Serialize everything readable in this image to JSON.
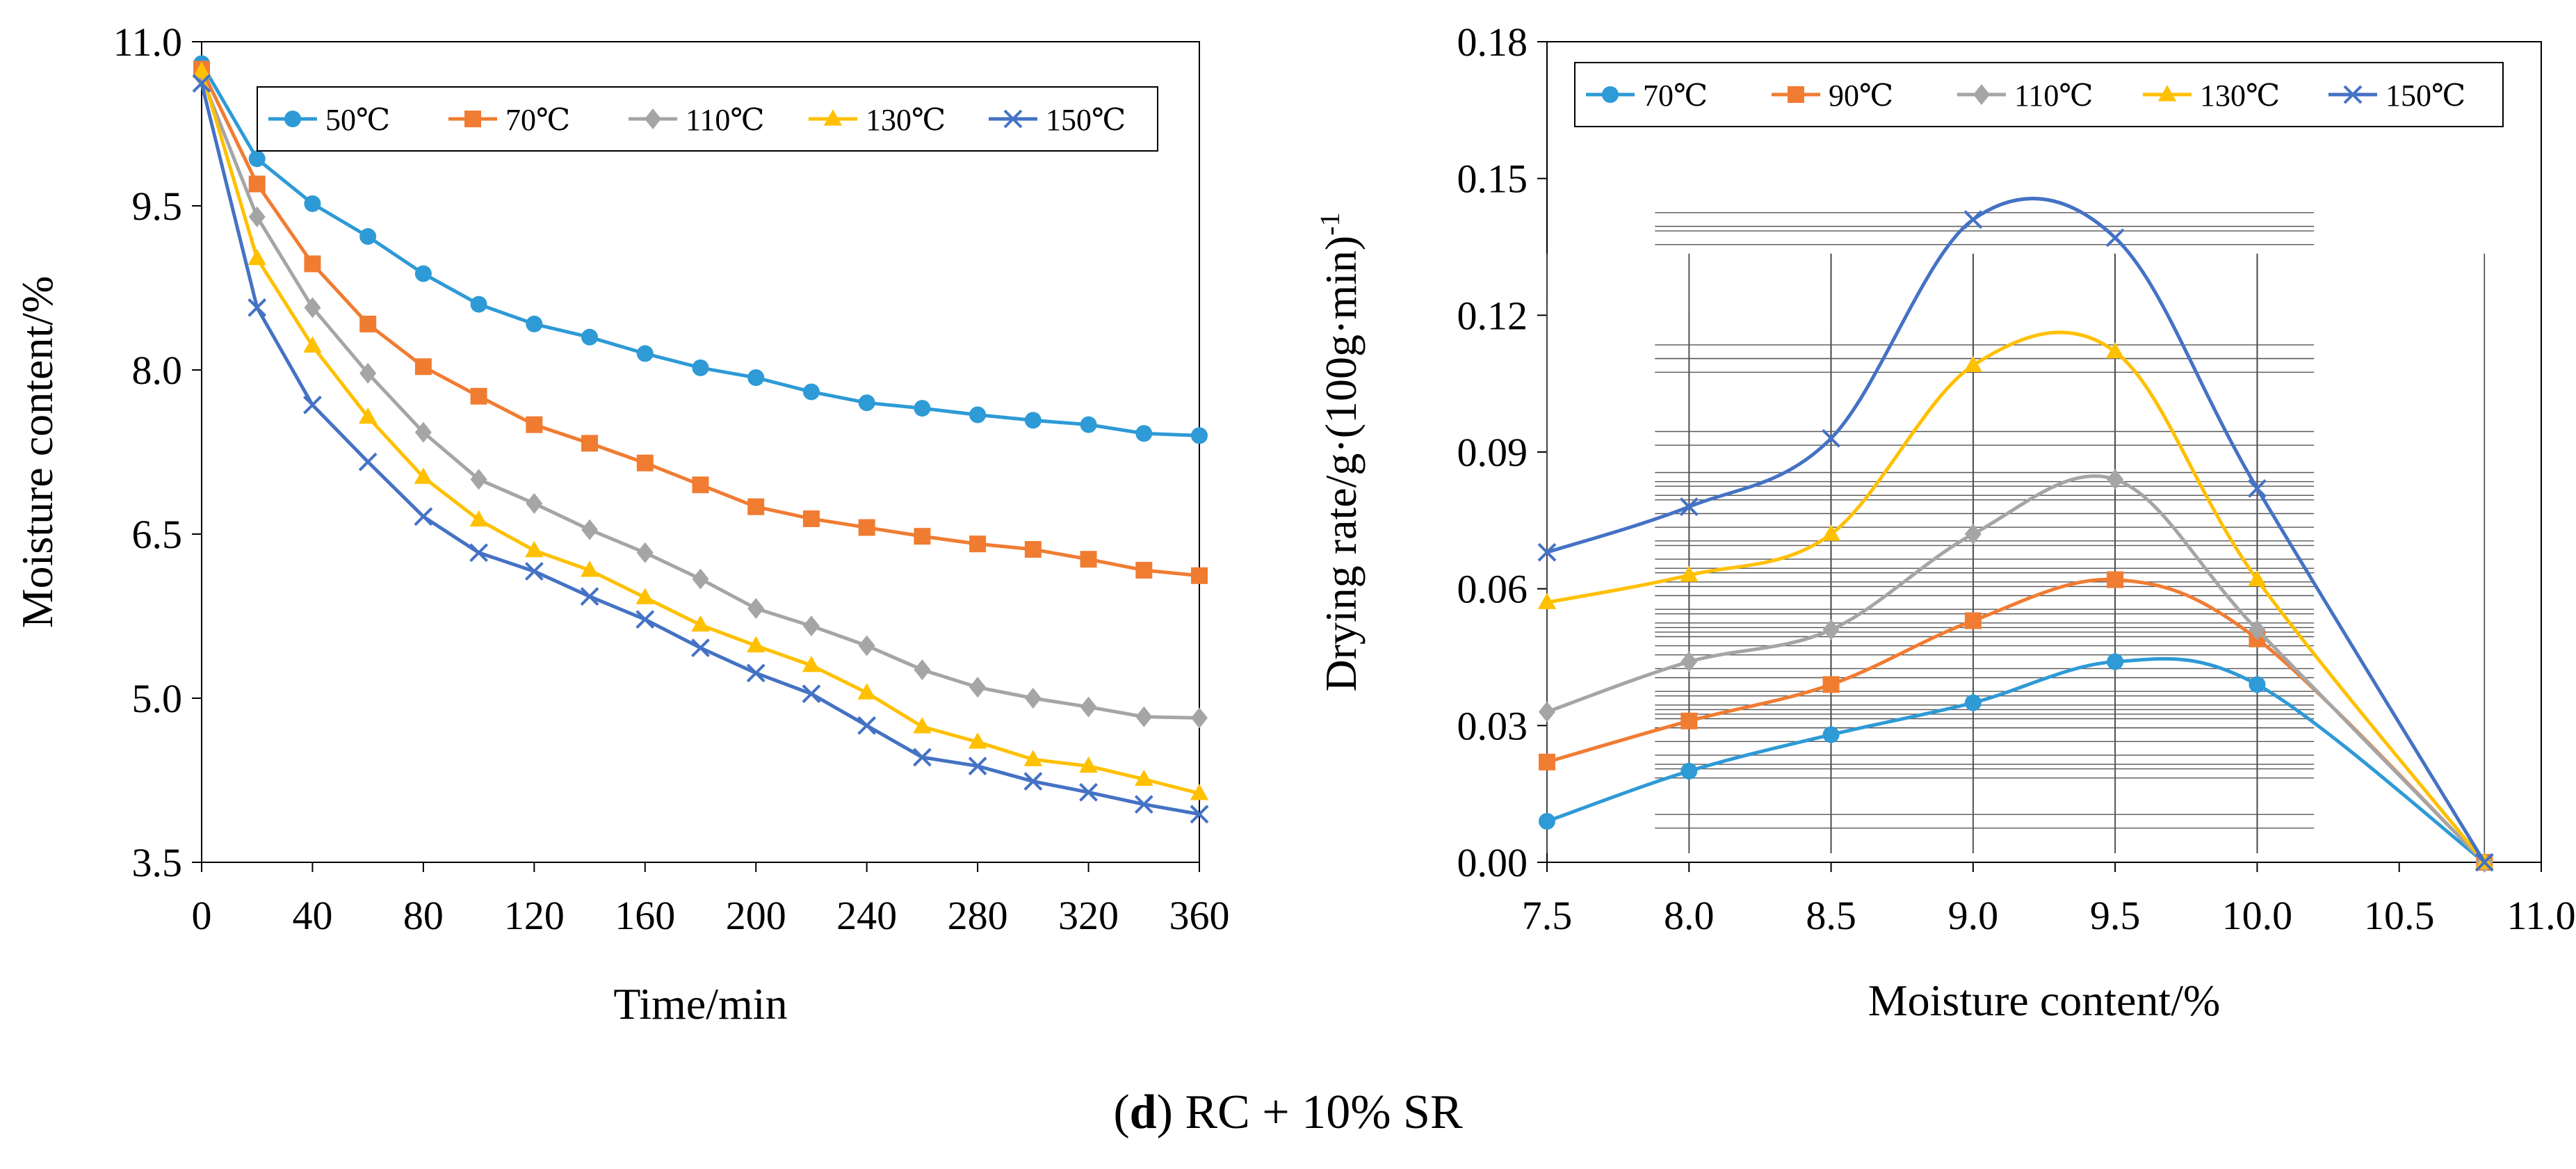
{
  "caption": {
    "label": "d",
    "text": "RC + 10% SR"
  },
  "chart_data": [
    {
      "type": "line",
      "title": "",
      "xlabel": "Time/min",
      "ylabel": "Moisture content/%",
      "xlim": [
        0,
        360
      ],
      "ylim": [
        3.5,
        11.0
      ],
      "xticks": [
        "0",
        "40",
        "80",
        "120",
        "160",
        "200",
        "240",
        "280",
        "320",
        "360"
      ],
      "yticks": [
        "3.5",
        "5.0",
        "6.5",
        "8.0",
        "9.5",
        "11.0"
      ],
      "legend_position": "top-right",
      "x": [
        0,
        20,
        40,
        60,
        80,
        100,
        120,
        140,
        160,
        180,
        200,
        220,
        240,
        260,
        280,
        300,
        320,
        340,
        360
      ],
      "series": [
        {
          "name": "50℃",
          "color": "#2e9ad6",
          "marker": "circle",
          "values": [
            10.8,
            9.93,
            9.52,
            9.22,
            8.88,
            8.6,
            8.42,
            8.3,
            8.15,
            8.02,
            7.93,
            7.8,
            7.7,
            7.65,
            7.59,
            7.54,
            7.5,
            7.42,
            7.4
          ]
        },
        {
          "name": "70℃",
          "color": "#f07c32",
          "marker": "square",
          "values": [
            10.75,
            9.7,
            8.97,
            8.42,
            8.03,
            7.76,
            7.5,
            7.33,
            7.15,
            6.95,
            6.75,
            6.64,
            6.56,
            6.48,
            6.41,
            6.36,
            6.27,
            6.17,
            6.12
          ]
        },
        {
          "name": "110℃",
          "color": "#a5a5a5",
          "marker": "diamond",
          "values": [
            10.68,
            9.4,
            8.57,
            7.97,
            7.43,
            7.0,
            6.78,
            6.54,
            6.33,
            6.09,
            5.82,
            5.66,
            5.48,
            5.26,
            5.1,
            5.0,
            4.92,
            4.83,
            4.82
          ]
        },
        {
          "name": "130℃",
          "color": "#ffc000",
          "marker": "triangle",
          "values": [
            10.73,
            9.02,
            8.22,
            7.57,
            7.02,
            6.63,
            6.35,
            6.17,
            5.92,
            5.67,
            5.48,
            5.3,
            5.05,
            4.74,
            4.6,
            4.44,
            4.38,
            4.26,
            4.13
          ]
        },
        {
          "name": "150℃",
          "color": "#4472c4",
          "marker": "x",
          "values": [
            10.62,
            8.57,
            7.68,
            7.16,
            6.66,
            6.33,
            6.16,
            5.93,
            5.72,
            5.46,
            5.23,
            5.04,
            4.75,
            4.46,
            4.38,
            4.24,
            4.14,
            4.03,
            3.94
          ]
        }
      ]
    },
    {
      "type": "line",
      "title": "",
      "xlabel": "Moisture content/%",
      "ylabel": "Drying rate/g·(100g·min)",
      "ylabel_superscript": "-1",
      "xlim": [
        7.5,
        11.0
      ],
      "ylim": [
        0.0,
        0.18
      ],
      "xticks": [
        "7.5",
        "8.0",
        "8.5",
        "9.0",
        "9.5",
        "10.0",
        "10.5",
        "11.0"
      ],
      "yticks": [
        "0.00",
        "0.03",
        "0.06",
        "0.09",
        "0.12",
        "0.15",
        "0.18"
      ],
      "legend_position": "top",
      "error_bars": true,
      "x": [
        7.5,
        8.0,
        8.5,
        9.0,
        9.5,
        10.0,
        10.8
      ],
      "series": [
        {
          "name": "70℃",
          "color": "#2e9ad6",
          "marker": "circle",
          "values": [
            0.009,
            0.02,
            0.028,
            0.035,
            0.044,
            0.039,
            0.0
          ]
        },
        {
          "name": "90℃",
          "color": "#f07c32",
          "marker": "square",
          "values": [
            0.022,
            0.031,
            0.039,
            0.053,
            0.062,
            0.049,
            0.0
          ]
        },
        {
          "name": "110℃",
          "color": "#a5a5a5",
          "marker": "diamond",
          "values": [
            0.033,
            0.044,
            0.051,
            0.072,
            0.084,
            0.051,
            0.0
          ]
        },
        {
          "name": "130℃",
          "color": "#ffc000",
          "marker": "triangle",
          "values": [
            0.057,
            0.063,
            0.072,
            0.109,
            0.112,
            0.062,
            0.0
          ]
        },
        {
          "name": "150℃",
          "color": "#4472c4",
          "marker": "x",
          "values": [
            0.068,
            0.078,
            0.093,
            0.141,
            0.137,
            0.082,
            0.0
          ]
        }
      ]
    }
  ]
}
